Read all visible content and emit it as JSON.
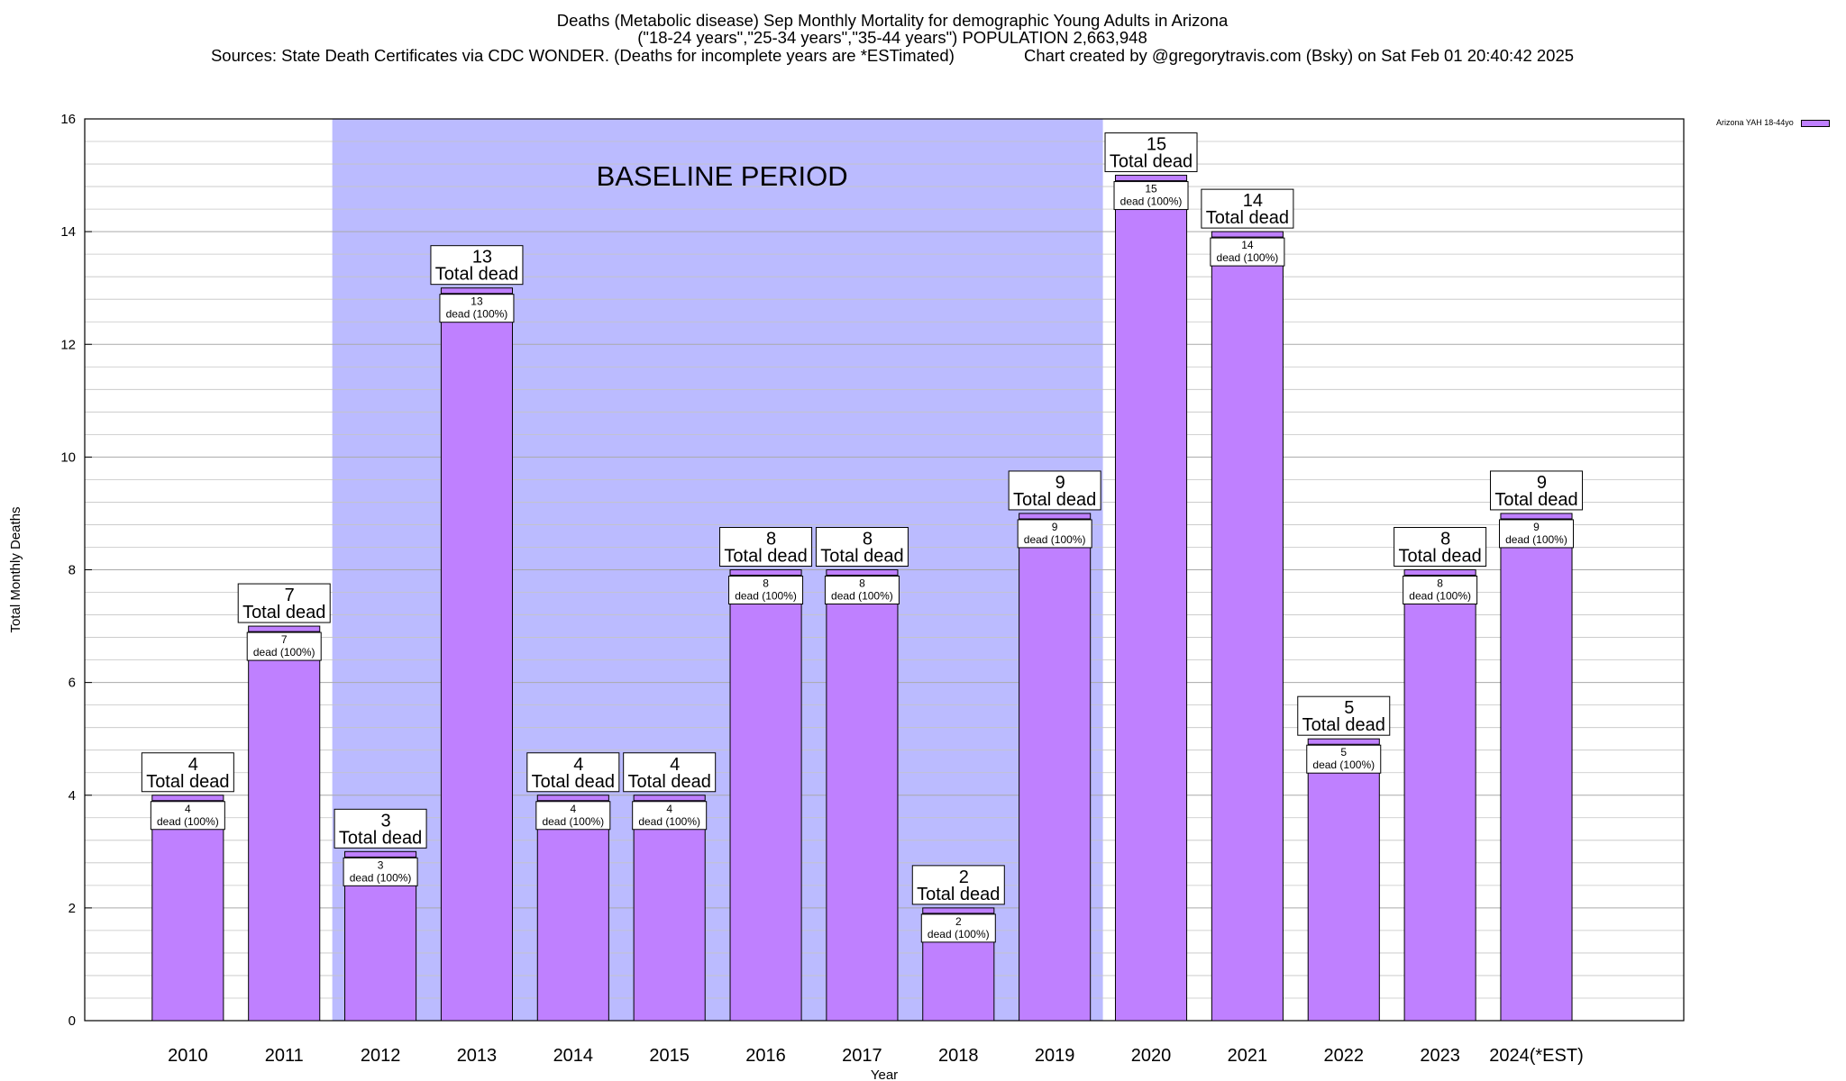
{
  "header": {
    "title_line1": "Deaths (Metabolic disease) Sep Monthly Mortality for demographic Young Adults in Arizona",
    "title_line2": "(\"18-24 years\",\"25-34 years\",\"35-44 years\") POPULATION 2,663,948",
    "title_line3": "Sources: State Death Certificates via CDC WONDER. (Deaths for incomplete years are *ESTimated)               Chart created by @gregorytravis.com (Bsky) on Sat Feb 01 20:40:42 2025"
  },
  "legend": {
    "label": "Arizona YAH 18-44yo",
    "color": "#bf80ff"
  },
  "chart_data": {
    "type": "bar",
    "categories": [
      "2010",
      "2011",
      "2012",
      "2013",
      "2014",
      "2015",
      "2016",
      "2017",
      "2018",
      "2019",
      "2020",
      "2021",
      "2022",
      "2023",
      "2024(*EST)"
    ],
    "values": [
      4,
      7,
      3,
      13,
      4,
      4,
      8,
      8,
      2,
      9,
      15,
      14,
      5,
      8,
      9
    ],
    "bar_labels": {
      "total_suffix": "Total dead",
      "inner_suffix": "dead (100%)"
    },
    "xlabel": "Year",
    "ylabel": "Total Monthly Deaths",
    "ylim": [
      0,
      16
    ],
    "yticks": [
      0,
      2,
      4,
      6,
      8,
      10,
      12,
      14,
      16
    ],
    "minor_gridlines_per_major": 5,
    "grid": true,
    "shaded_region": {
      "label": "BASELINE PERIOD",
      "from_category": "2012",
      "to_category": "2019",
      "color": "#bbbbff"
    },
    "bar_color": "#bf80ff",
    "legend_position": "top-right"
  }
}
